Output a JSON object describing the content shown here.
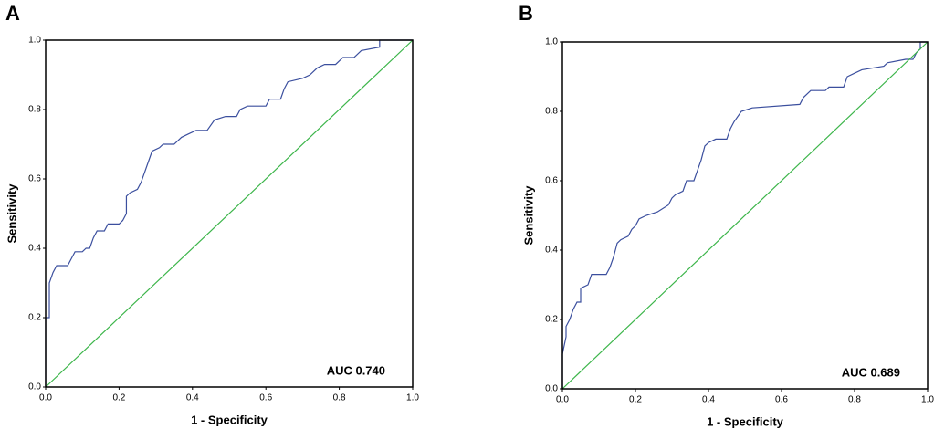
{
  "chart_data": [
    {
      "type": "line",
      "panel": "A",
      "xlabel": "1 - Specificity",
      "ylabel": "Sensitivity",
      "annotation": "AUC 0.740",
      "xlim": [
        0,
        1
      ],
      "ylim": [
        0,
        1
      ],
      "xticks": [
        {
          "value": 0,
          "label": "0.0"
        },
        0.2,
        0.4,
        0.6,
        0.8,
        {
          "value": 1,
          "label": "1.0"
        }
      ],
      "yticks": [
        {
          "value": 0,
          "label": "0.0"
        },
        0.2,
        0.4,
        0.6,
        0.8,
        {
          "value": 1,
          "label": "1.0"
        }
      ],
      "series": [
        {
          "color": "#3b4f9e",
          "x": [
            0,
            0,
            0.01,
            0.01,
            0.02,
            0.03,
            0.06,
            0.07,
            0.08,
            0.1,
            0.11,
            0.12,
            0.13,
            0.14,
            0.16,
            0.17,
            0.2,
            0.21,
            0.22,
            0.22,
            0.23,
            0.25,
            0.26,
            0.27,
            0.28,
            0.29,
            0.31,
            0.32,
            0.35,
            0.37,
            0.39,
            0.41,
            0.44,
            0.46,
            0.49,
            0.52,
            0.53,
            0.55,
            0.6,
            0.61,
            0.64,
            0.65,
            0.66,
            0.7,
            0.72,
            0.74,
            0.76,
            0.79,
            0.81,
            0.84,
            0.86,
            0.91,
            0.91,
            1
          ],
          "values": [
            0,
            0.2,
            0.2,
            0.3,
            0.33,
            0.35,
            0.35,
            0.37,
            0.39,
            0.39,
            0.4,
            0.4,
            0.43,
            0.45,
            0.45,
            0.47,
            0.47,
            0.48,
            0.5,
            0.55,
            0.56,
            0.57,
            0.59,
            0.62,
            0.65,
            0.68,
            0.69,
            0.7,
            0.7,
            0.72,
            0.73,
            0.74,
            0.74,
            0.77,
            0.78,
            0.78,
            0.8,
            0.81,
            0.81,
            0.83,
            0.83,
            0.86,
            0.88,
            0.89,
            0.9,
            0.92,
            0.93,
            0.93,
            0.95,
            0.95,
            0.97,
            0.98,
            1,
            1
          ]
        },
        {
          "color": "#3cb54a",
          "x": [
            0,
            1
          ],
          "values": [
            0,
            1
          ]
        }
      ]
    },
    {
      "type": "line",
      "panel": "B",
      "xlabel": "1 - Specificity",
      "ylabel": "Sensitivity",
      "annotation": "AUC 0.689",
      "xlim": [
        0,
        1
      ],
      "ylim": [
        0,
        1
      ],
      "xticks": [
        {
          "value": 0,
          "label": "0.0"
        },
        0.2,
        0.4,
        0.6,
        0.8,
        {
          "value": 1,
          "label": "1.0"
        }
      ],
      "yticks": [
        {
          "value": 0,
          "label": "0.0"
        },
        0.2,
        0.4,
        0.6,
        0.8,
        {
          "value": 1,
          "label": "1.0"
        }
      ],
      "series": [
        {
          "color": "#3b4f9e",
          "x": [
            0,
            0,
            0.01,
            0.01,
            0.02,
            0.03,
            0.04,
            0.05,
            0.05,
            0.07,
            0.08,
            0.12,
            0.13,
            0.14,
            0.15,
            0.16,
            0.18,
            0.19,
            0.2,
            0.21,
            0.23,
            0.26,
            0.29,
            0.3,
            0.31,
            0.33,
            0.34,
            0.36,
            0.38,
            0.39,
            0.4,
            0.42,
            0.45,
            0.46,
            0.47,
            0.49,
            0.52,
            0.65,
            0.66,
            0.68,
            0.72,
            0.73,
            0.77,
            0.78,
            0.8,
            0.82,
            0.88,
            0.89,
            0.94,
            0.96,
            0.97,
            0.98,
            0.98,
            1
          ],
          "values": [
            0,
            0.1,
            0.15,
            0.18,
            0.2,
            0.23,
            0.25,
            0.25,
            0.29,
            0.3,
            0.33,
            0.33,
            0.35,
            0.38,
            0.42,
            0.43,
            0.44,
            0.46,
            0.47,
            0.49,
            0.5,
            0.51,
            0.53,
            0.55,
            0.56,
            0.57,
            0.6,
            0.6,
            0.66,
            0.7,
            0.71,
            0.72,
            0.72,
            0.75,
            0.77,
            0.8,
            0.81,
            0.82,
            0.84,
            0.86,
            0.86,
            0.87,
            0.87,
            0.9,
            0.91,
            0.92,
            0.93,
            0.94,
            0.95,
            0.95,
            0.97,
            0.98,
            1,
            1
          ]
        },
        {
          "color": "#3cb54a",
          "x": [
            0,
            1
          ],
          "values": [
            0,
            1
          ]
        }
      ]
    }
  ]
}
